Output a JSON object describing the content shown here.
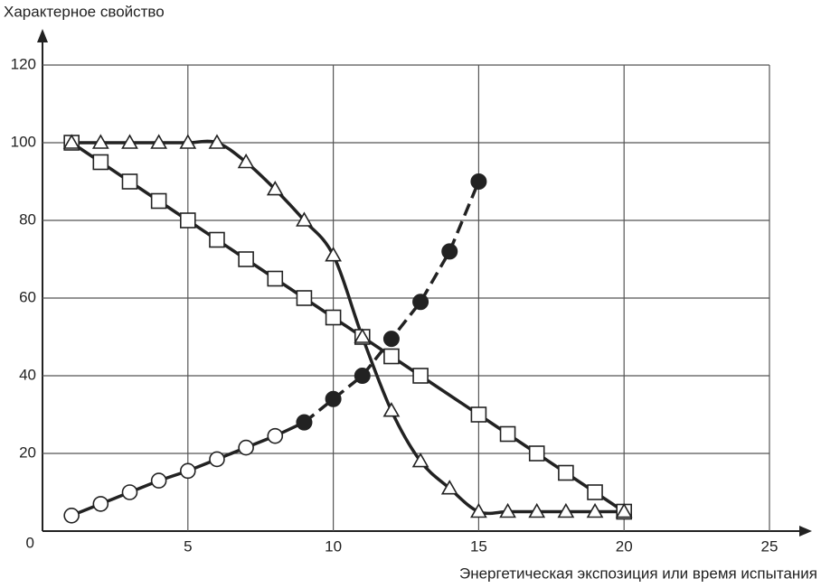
{
  "chart_data": {
    "type": "line",
    "y_label": "Характерное свойство",
    "x_label": "Энергетическая экспозиция или время испытания",
    "xlim": [
      0,
      25
    ],
    "ylim": [
      0,
      120
    ],
    "xticks": [
      5,
      10,
      15,
      20,
      25
    ],
    "yticks": [
      0,
      20,
      40,
      60,
      80,
      100,
      120
    ],
    "grid": true,
    "series": [
      {
        "marker": "square",
        "color": "#222",
        "smooth": false,
        "dashed": false,
        "x": [
          1,
          2,
          3,
          4,
          5,
          6,
          7,
          8,
          9,
          10,
          11,
          12,
          13,
          15,
          16,
          17,
          18,
          19,
          20
        ],
        "values": [
          100,
          95,
          90,
          85,
          80,
          75,
          70,
          65,
          60,
          55,
          50,
          45,
          40,
          30,
          25,
          20,
          15,
          10,
          5
        ]
      },
      {
        "marker": "triangle",
        "color": "#222",
        "smooth": true,
        "dashed": false,
        "x": [
          1,
          2,
          3,
          4,
          5,
          6,
          7,
          8,
          9,
          10,
          11,
          12,
          13,
          14,
          15,
          16,
          17,
          18,
          19,
          20
        ],
        "values": [
          100,
          100,
          100,
          100,
          100,
          100,
          95,
          88,
          80,
          71,
          50,
          31,
          18,
          11,
          5,
          5,
          5,
          5,
          5,
          5
        ]
      },
      {
        "marker": "open-circle",
        "color": "#222",
        "smooth": false,
        "dashed": false,
        "x": [
          1,
          2,
          3,
          4,
          5,
          6,
          7,
          8,
          9
        ],
        "values": [
          4,
          7,
          10,
          13,
          15.5,
          18.5,
          21.5,
          24.5,
          28
        ]
      },
      {
        "marker": "filled-circle",
        "color": "#222",
        "smooth": false,
        "dashed": true,
        "x": [
          9,
          10,
          11,
          12,
          13,
          14,
          15
        ],
        "values": [
          28,
          34,
          40,
          49.5,
          59,
          72,
          90
        ]
      }
    ]
  }
}
